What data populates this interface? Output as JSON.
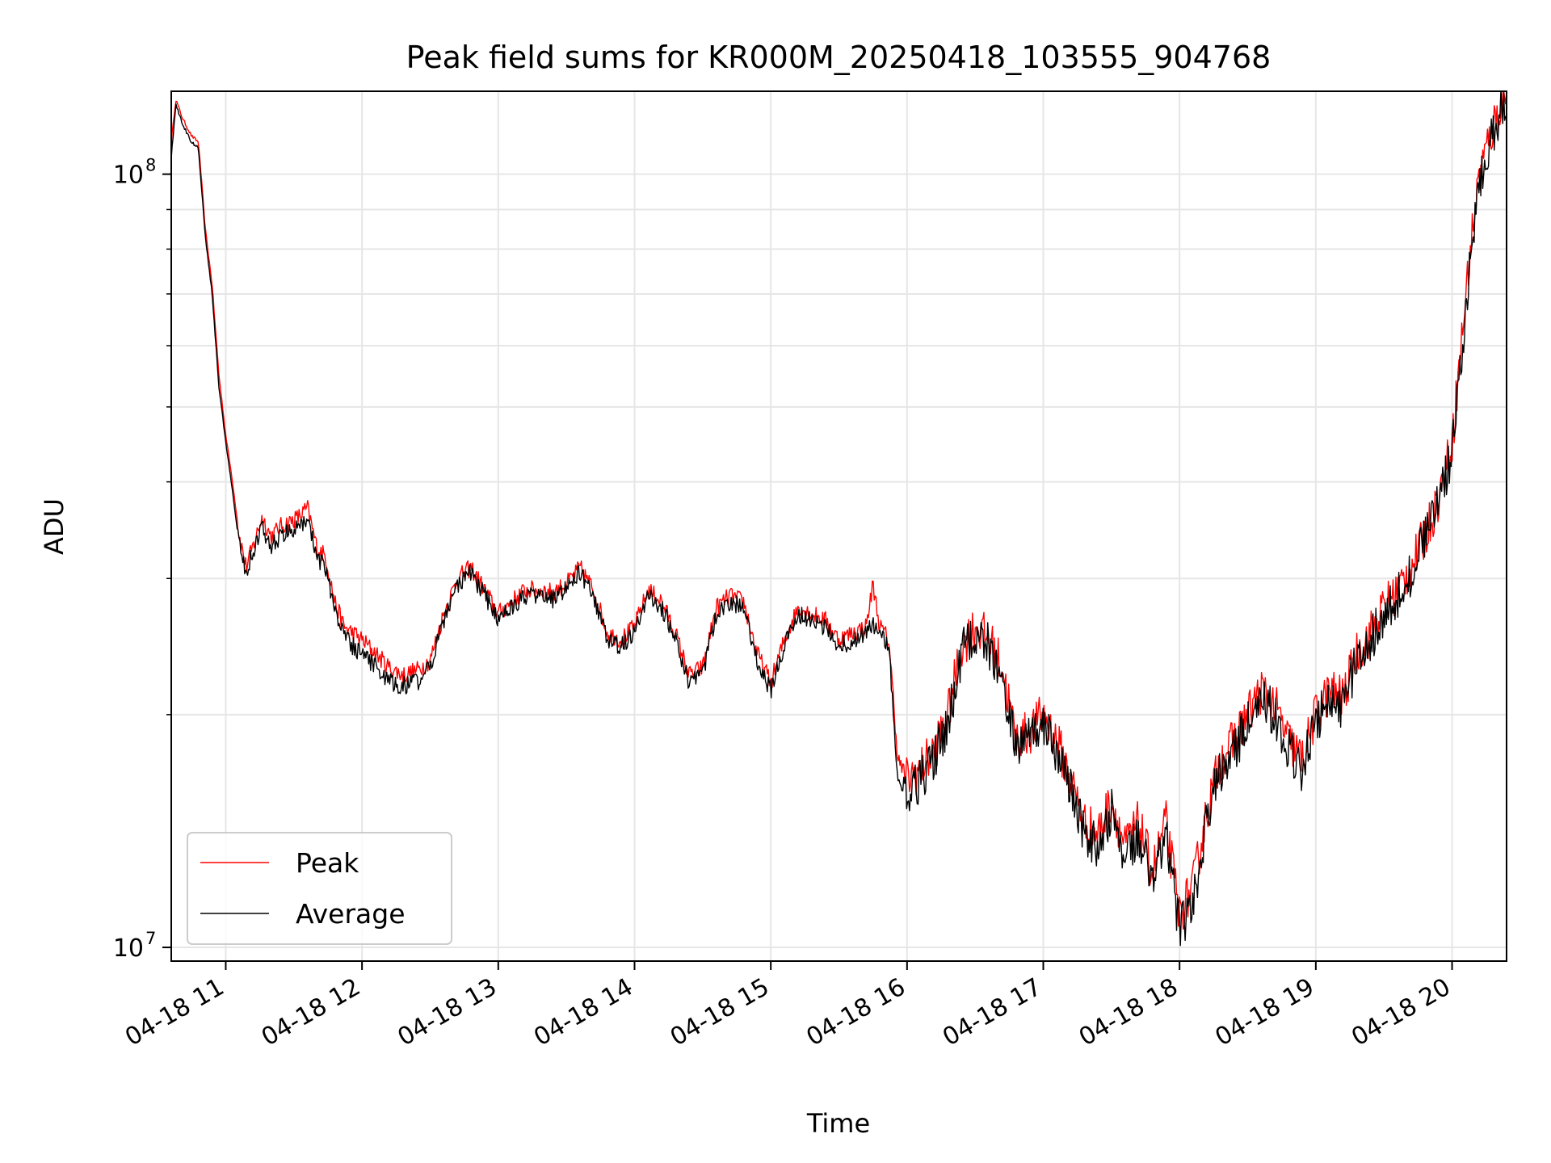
{
  "chart_data": {
    "type": "line",
    "title": "Peak field sums for KR000M_20250418_103555_904768",
    "xlabel": "Time",
    "ylabel": "ADU",
    "yscale": "log",
    "grid": true,
    "legend_position": "lower-left",
    "xlim": [
      "2025-04-18 10:36",
      "2025-04-18 20:24"
    ],
    "ylim": [
      9600000,
      128000000
    ],
    "x_ticks": [
      {
        "t": "2025-04-18 11:00",
        "label": "04-18 11"
      },
      {
        "t": "2025-04-18 12:00",
        "label": "04-18 12"
      },
      {
        "t": "2025-04-18 13:00",
        "label": "04-18 13"
      },
      {
        "t": "2025-04-18 14:00",
        "label": "04-18 14"
      },
      {
        "t": "2025-04-18 15:00",
        "label": "04-18 15"
      },
      {
        "t": "2025-04-18 16:00",
        "label": "04-18 16"
      },
      {
        "t": "2025-04-18 17:00",
        "label": "04-18 17"
      },
      {
        "t": "2025-04-18 18:00",
        "label": "04-18 18"
      },
      {
        "t": "2025-04-18 19:00",
        "label": "04-18 19"
      },
      {
        "t": "2025-04-18 20:00",
        "label": "04-18 20"
      }
    ],
    "y_ticks": [
      {
        "v": 10000000,
        "base": "10",
        "exp": "7"
      },
      {
        "v": 100000000,
        "base": "10",
        "exp": "8"
      }
    ],
    "y_minor_ticks": [
      20000000,
      30000000,
      40000000,
      50000000,
      60000000,
      70000000,
      80000000,
      90000000
    ],
    "colors": {
      "peak": "#ff0000",
      "average": "#000000",
      "grid": "#e6e6e6"
    },
    "series": [
      {
        "name": "Peak",
        "color": "#ff0000",
        "x": [
          "2025-04-18 10:36",
          "2025-04-18 10:38",
          "2025-04-18 10:41",
          "2025-04-18 10:45",
          "2025-04-18 10:48",
          "2025-04-18 10:51",
          "2025-04-18 10:54",
          "2025-04-18 10:57",
          "2025-04-18 11:00",
          "2025-04-18 11:03",
          "2025-04-18 11:06",
          "2025-04-18 11:09",
          "2025-04-18 11:12",
          "2025-04-18 11:16",
          "2025-04-18 11:20",
          "2025-04-18 11:24",
          "2025-04-18 11:28",
          "2025-04-18 11:32",
          "2025-04-18 11:36",
          "2025-04-18 11:40",
          "2025-04-18 11:44",
          "2025-04-18 11:48",
          "2025-04-18 11:52",
          "2025-04-18 11:56",
          "2025-04-18 12:00",
          "2025-04-18 12:06",
          "2025-04-18 12:12",
          "2025-04-18 12:18",
          "2025-04-18 12:24",
          "2025-04-18 12:30",
          "2025-04-18 12:36",
          "2025-04-18 12:42",
          "2025-04-18 12:48",
          "2025-04-18 12:54",
          "2025-04-18 13:00",
          "2025-04-18 13:06",
          "2025-04-18 13:12",
          "2025-04-18 13:18",
          "2025-04-18 13:24",
          "2025-04-18 13:30",
          "2025-04-18 13:36",
          "2025-04-18 13:42",
          "2025-04-18 13:48",
          "2025-04-18 13:54",
          "2025-04-18 14:00",
          "2025-04-18 14:06",
          "2025-04-18 14:12",
          "2025-04-18 14:18",
          "2025-04-18 14:24",
          "2025-04-18 14:30",
          "2025-04-18 14:36",
          "2025-04-18 14:42",
          "2025-04-18 14:48",
          "2025-04-18 14:54",
          "2025-04-18 15:00",
          "2025-04-18 15:06",
          "2025-04-18 15:12",
          "2025-04-18 15:18",
          "2025-04-18 15:24",
          "2025-04-18 15:30",
          "2025-04-18 15:36",
          "2025-04-18 15:42",
          "2025-04-18 15:45",
          "2025-04-18 15:48",
          "2025-04-18 15:52",
          "2025-04-18 15:56",
          "2025-04-18 16:00",
          "2025-04-18 16:06",
          "2025-04-18 16:12",
          "2025-04-18 16:18",
          "2025-04-18 16:24",
          "2025-04-18 16:30",
          "2025-04-18 16:36",
          "2025-04-18 16:42",
          "2025-04-18 16:48",
          "2025-04-18 16:54",
          "2025-04-18 17:00",
          "2025-04-18 17:06",
          "2025-04-18 17:12",
          "2025-04-18 17:18",
          "2025-04-18 17:24",
          "2025-04-18 17:30",
          "2025-04-18 17:36",
          "2025-04-18 17:42",
          "2025-04-18 17:48",
          "2025-04-18 17:54",
          "2025-04-18 18:00",
          "2025-04-18 18:06",
          "2025-04-18 18:12",
          "2025-04-18 18:18",
          "2025-04-18 18:24",
          "2025-04-18 18:30",
          "2025-04-18 18:36",
          "2025-04-18 18:42",
          "2025-04-18 18:48",
          "2025-04-18 18:54",
          "2025-04-18 19:00",
          "2025-04-18 19:06",
          "2025-04-18 19:12",
          "2025-04-18 19:18",
          "2025-04-18 19:24",
          "2025-04-18 19:30",
          "2025-04-18 19:36",
          "2025-04-18 19:42",
          "2025-04-18 19:48",
          "2025-04-18 19:54",
          "2025-04-18 20:00",
          "2025-04-18 20:04",
          "2025-04-18 20:08",
          "2025-04-18 20:12",
          "2025-04-18 20:16",
          "2025-04-18 20:20",
          "2025-04-18 20:24"
        ],
        "y": [
          110000000,
          125000000,
          118000000,
          112000000,
          110000000,
          85000000,
          72000000,
          55000000,
          46000000,
          40000000,
          34000000,
          31000000,
          33000000,
          36000000,
          34000000,
          35000000,
          35500000,
          36000000,
          37000000,
          33000000,
          32000000,
          28000000,
          26000000,
          25500000,
          25000000,
          24000000,
          23000000,
          22500000,
          22800000,
          23500000,
          27000000,
          30000000,
          31000000,
          29000000,
          27000000,
          28000000,
          29000000,
          29000000,
          28800000,
          29500000,
          31000000,
          29000000,
          25500000,
          25000000,
          26000000,
          29000000,
          28000000,
          25500000,
          22500000,
          23000000,
          27500000,
          28500000,
          28000000,
          24000000,
          22000000,
          25000000,
          27500000,
          27000000,
          26500000,
          25000000,
          25500000,
          26000000,
          29500000,
          26000000,
          25000000,
          17500000,
          16500000,
          17000000,
          18000000,
          20000000,
          24500000,
          26000000,
          25000000,
          23000000,
          18500000,
          19000000,
          20000000,
          18500000,
          16500000,
          14500000,
          14000000,
          15500000,
          13500000,
          14500000,
          12500000,
          14500000,
          11000000,
          12000000,
          15000000,
          17500000,
          18500000,
          20000000,
          21500000,
          20500000,
          18500000,
          17500000,
          20000000,
          21500000,
          21000000,
          24000000,
          25500000,
          27500000,
          29000000,
          31000000,
          34000000,
          38000000,
          45000000,
          60000000,
          80000000,
          100000000,
          110000000,
          120000000,
          127000000
        ]
      },
      {
        "name": "Average",
        "color": "#000000",
        "x": [
          "2025-04-18 10:36",
          "2025-04-18 10:38",
          "2025-04-18 10:41",
          "2025-04-18 10:45",
          "2025-04-18 10:48",
          "2025-04-18 10:51",
          "2025-04-18 10:54",
          "2025-04-18 10:57",
          "2025-04-18 11:00",
          "2025-04-18 11:03",
          "2025-04-18 11:06",
          "2025-04-18 11:09",
          "2025-04-18 11:12",
          "2025-04-18 11:16",
          "2025-04-18 11:20",
          "2025-04-18 11:24",
          "2025-04-18 11:28",
          "2025-04-18 11:32",
          "2025-04-18 11:36",
          "2025-04-18 11:40",
          "2025-04-18 11:44",
          "2025-04-18 11:48",
          "2025-04-18 11:52",
          "2025-04-18 11:56",
          "2025-04-18 12:00",
          "2025-04-18 12:06",
          "2025-04-18 12:12",
          "2025-04-18 12:18",
          "2025-04-18 12:24",
          "2025-04-18 12:30",
          "2025-04-18 12:36",
          "2025-04-18 12:42",
          "2025-04-18 12:48",
          "2025-04-18 12:54",
          "2025-04-18 13:00",
          "2025-04-18 13:06",
          "2025-04-18 13:12",
          "2025-04-18 13:18",
          "2025-04-18 13:24",
          "2025-04-18 13:30",
          "2025-04-18 13:36",
          "2025-04-18 13:42",
          "2025-04-18 13:48",
          "2025-04-18 13:54",
          "2025-04-18 14:00",
          "2025-04-18 14:06",
          "2025-04-18 14:12",
          "2025-04-18 14:18",
          "2025-04-18 14:24",
          "2025-04-18 14:30",
          "2025-04-18 14:36",
          "2025-04-18 14:42",
          "2025-04-18 14:48",
          "2025-04-18 14:54",
          "2025-04-18 15:00",
          "2025-04-18 15:06",
          "2025-04-18 15:12",
          "2025-04-18 15:18",
          "2025-04-18 15:24",
          "2025-04-18 15:30",
          "2025-04-18 15:36",
          "2025-04-18 15:42",
          "2025-04-18 15:45",
          "2025-04-18 15:48",
          "2025-04-18 15:52",
          "2025-04-18 15:56",
          "2025-04-18 16:00",
          "2025-04-18 16:06",
          "2025-04-18 16:12",
          "2025-04-18 16:18",
          "2025-04-18 16:24",
          "2025-04-18 16:30",
          "2025-04-18 16:36",
          "2025-04-18 16:42",
          "2025-04-18 16:48",
          "2025-04-18 16:54",
          "2025-04-18 17:00",
          "2025-04-18 17:06",
          "2025-04-18 17:12",
          "2025-04-18 17:18",
          "2025-04-18 17:24",
          "2025-04-18 17:30",
          "2025-04-18 17:36",
          "2025-04-18 17:42",
          "2025-04-18 17:48",
          "2025-04-18 17:54",
          "2025-04-18 18:00",
          "2025-04-18 18:06",
          "2025-04-18 18:12",
          "2025-04-18 18:18",
          "2025-04-18 18:24",
          "2025-04-18 18:30",
          "2025-04-18 18:36",
          "2025-04-18 18:42",
          "2025-04-18 18:48",
          "2025-04-18 18:54",
          "2025-04-18 19:00",
          "2025-04-18 19:06",
          "2025-04-18 19:12",
          "2025-04-18 19:18",
          "2025-04-18 19:24",
          "2025-04-18 19:30",
          "2025-04-18 19:36",
          "2025-04-18 19:42",
          "2025-04-18 19:48",
          "2025-04-18 19:54",
          "2025-04-18 20:00",
          "2025-04-18 20:04",
          "2025-04-18 20:08",
          "2025-04-18 20:12",
          "2025-04-18 20:16",
          "2025-04-18 20:20",
          "2025-04-18 20:24"
        ],
        "y": [
          105000000,
          123000000,
          116000000,
          110000000,
          108000000,
          83000000,
          70000000,
          53000000,
          45000000,
          39000000,
          33000000,
          30500000,
          32500000,
          35000000,
          33000000,
          34000000,
          34500000,
          35000000,
          36000000,
          32000000,
          31000000,
          27000000,
          25500000,
          24500000,
          24000000,
          23000000,
          22000000,
          21800000,
          22000000,
          23000000,
          26500000,
          29500000,
          30500000,
          28500000,
          26500000,
          27500000,
          28500000,
          28500000,
          28200000,
          29000000,
          30500000,
          28500000,
          25000000,
          24500000,
          25500000,
          28500000,
          27500000,
          25000000,
          22000000,
          22500000,
          27000000,
          28000000,
          27500000,
          23500000,
          21500000,
          24500000,
          27000000,
          26500000,
          26000000,
          24500000,
          25000000,
          25500000,
          26000000,
          25500000,
          24500000,
          16500000,
          16000000,
          16500000,
          17500000,
          19500000,
          24000000,
          25500000,
          24500000,
          22500000,
          18000000,
          18500000,
          19500000,
          18000000,
          16000000,
          14000000,
          13500000,
          15000000,
          13000000,
          14000000,
          12000000,
          14000000,
          10500000,
          11500000,
          14500000,
          17000000,
          18000000,
          19500000,
          21000000,
          20000000,
          18000000,
          17000000,
          19500000,
          21000000,
          20500000,
          23500000,
          25000000,
          27000000,
          28500000,
          30500000,
          33500000,
          37500000,
          44000000,
          58000000,
          78000000,
          98000000,
          108000000,
          118000000,
          125000000
        ]
      }
    ]
  }
}
